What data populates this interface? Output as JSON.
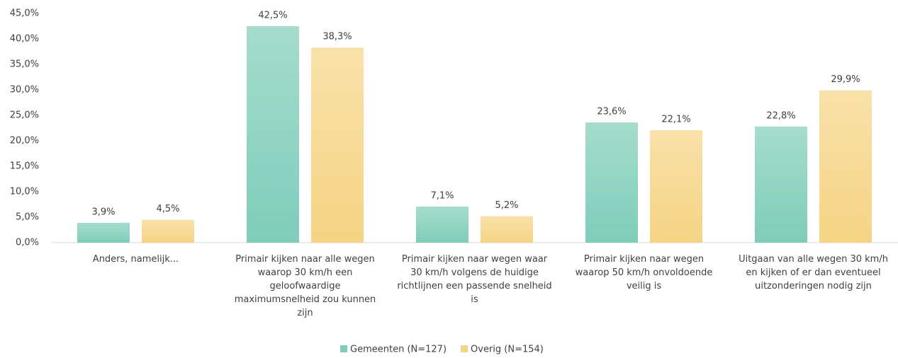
{
  "chart_data": {
    "type": "bar",
    "categories": [
      "Anders, namelijk...",
      "Primair kijken naar alle wegen waarop 30 km/h een geloofwaardige maximumsnelheid zou kunnen zijn",
      "Primair kijken naar wegen waar 30 km/h volgens de huidige richtlijnen een passende snelheid is",
      "Primair kijken naar wegen waarop 50 km/h onvoldoende veilig is",
      "Uitgaan van alle wegen 30 km/h en kijken of er dan eventueel uitzonderingen nodig zijn"
    ],
    "series": [
      {
        "name": "Gemeenten (N=127)",
        "color": "#7fcdb9",
        "values": [
          3.9,
          42.5,
          7.1,
          23.6,
          22.8
        ],
        "value_labels": [
          "3,9%",
          "42,5%",
          "7,1%",
          "23,6%",
          "22,8%"
        ]
      },
      {
        "name": "Overig (N=154)",
        "color": "#f5d484",
        "values": [
          4.5,
          38.3,
          5.2,
          22.1,
          29.9
        ],
        "value_labels": [
          "4,5%",
          "38,3%",
          "5,2%",
          "22,1%",
          "29,9%"
        ]
      }
    ],
    "ylim": [
      0,
      45
    ],
    "yticks": [
      {
        "value": 0,
        "label": "0,0%"
      },
      {
        "value": 5,
        "label": "5,0%"
      },
      {
        "value": 10,
        "label": "10,0%"
      },
      {
        "value": 15,
        "label": "15,0%"
      },
      {
        "value": 20,
        "label": "20,0%"
      },
      {
        "value": 25,
        "label": "25,0%"
      },
      {
        "value": 30,
        "label": "30,0%"
      },
      {
        "value": 35,
        "label": "35,0%"
      },
      {
        "value": 40,
        "label": "40,0%"
      },
      {
        "value": 45,
        "label": "45,0%"
      }
    ],
    "grid": false,
    "legend": "bottom"
  }
}
